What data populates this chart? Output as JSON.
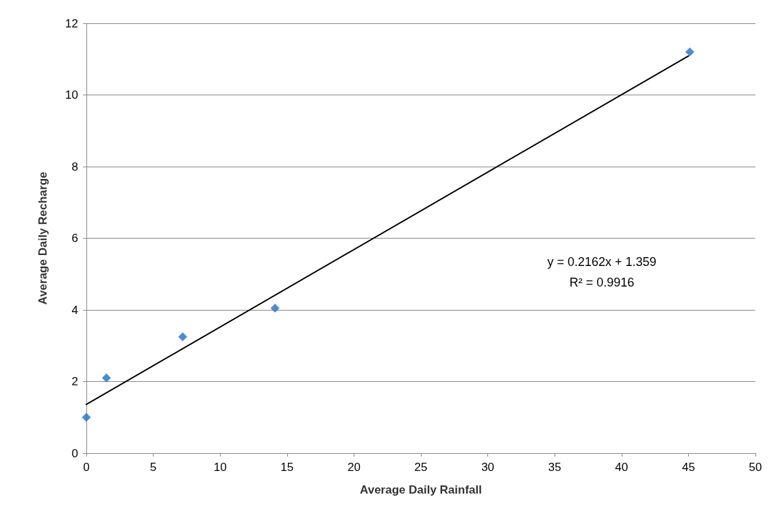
{
  "chart_data": {
    "type": "scatter",
    "xlabel": "Average Daily Rainfall",
    "ylabel": "Average Daily Recharge",
    "series": [
      {
        "color": "#1f6fc5",
        "marker": "diamond",
        "x": [
          0,
          1.5,
          7.2,
          14.1,
          45.1
        ],
        "values": [
          1.0,
          2.1,
          3.25,
          4.05,
          11.2
        ]
      },
      {
        "type": "line",
        "color": "#000000",
        "marker": "none",
        "line_style": "solid",
        "x": [
          0,
          45
        ],
        "values": [
          1.36,
          11.09
        ]
      }
    ],
    "xlim": [
      0,
      50
    ],
    "xticks": [
      0,
      5,
      10,
      15,
      20,
      25,
      30,
      35,
      40,
      45,
      50
    ],
    "ylim": [
      0,
      12
    ],
    "yticks": [
      0,
      2,
      4,
      6,
      8,
      10,
      12
    ],
    "grid": "y",
    "annotations": [
      "y = 0.2162x + 1.359",
      "R² = 0.9916"
    ]
  }
}
